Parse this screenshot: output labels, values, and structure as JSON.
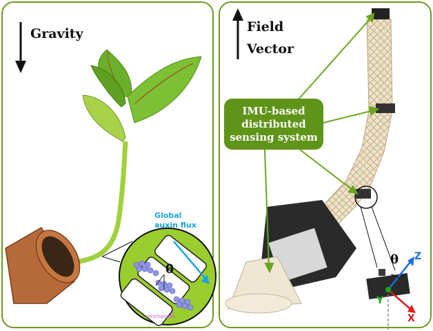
{
  "left_panel": {
    "gravity_label": "Gravity",
    "flux_label_line1": "Global",
    "flux_label_line2": "auxin flux",
    "theta_symbol": "θ",
    "flux_arrow_color": "#1aa3e0",
    "small_label": "amyloplasts"
  },
  "right_panel": {
    "field_vector_line1": "Field",
    "field_vector_line2": "Vector",
    "callout_line1": "IMU-based",
    "callout_line2": "distributed",
    "callout_line3": "sensing system",
    "theta_symbol": "θ",
    "axis_z": "Z",
    "axis_x": "X",
    "axis_y": "Y",
    "axis_colors": {
      "z": "#1a6fe0",
      "x": "#e01a1a",
      "y": "#18a818"
    }
  },
  "colors": {
    "frame": "#6a9a1e",
    "callout": "#5f9418",
    "leaf": "#7cba2a",
    "pot": "#b66a3a"
  }
}
